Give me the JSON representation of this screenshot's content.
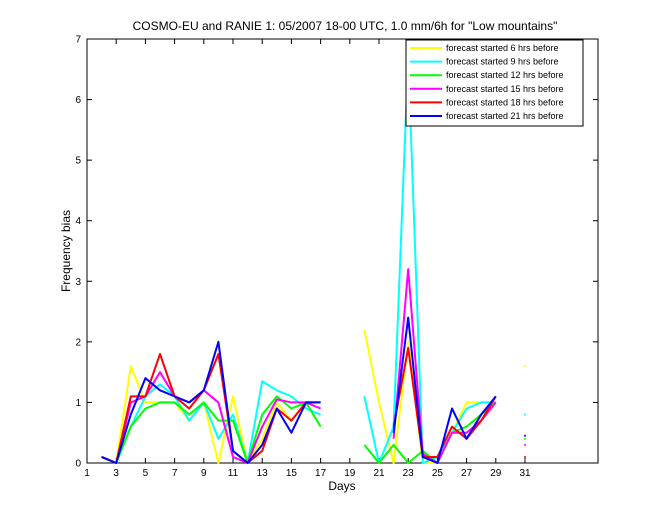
{
  "chart_data": {
    "type": "line",
    "title": "COSMO-EU and RANIE 1: 05/2007 18-00 UTC, 1.0 mm/6h for \"Low mountains\"",
    "xlabel": "Days",
    "ylabel": "Frequency bias",
    "xlim": [
      1,
      36
    ],
    "ylim": [
      0,
      7
    ],
    "xticks": [
      1,
      3,
      5,
      7,
      9,
      11,
      13,
      15,
      17,
      19,
      21,
      23,
      25,
      27,
      29,
      31
    ],
    "xtick_labels": [
      "1",
      "3",
      "5",
      "7",
      "9",
      "11",
      "13",
      "15",
      "17",
      "19",
      "21",
      "23",
      "25",
      "27",
      "29",
      "31"
    ],
    "yticks": [
      0,
      1,
      2,
      3,
      4,
      5,
      6,
      7
    ],
    "ytick_labels": [
      "0",
      "1",
      "2",
      "3",
      "4",
      "5",
      "6",
      "7"
    ],
    "grid": false,
    "legend_position": "top-right",
    "series": [
      {
        "name": "forecast started 6 hrs before",
        "color": "#ffff00",
        "values": [
          null,
          0.1,
          0.0,
          1.6,
          1.0,
          1.0,
          1.0,
          0.7,
          1.0,
          0.0,
          1.1,
          0.0,
          0.4,
          1.0,
          0.7,
          1.0,
          1.0,
          null,
          null,
          2.2,
          1.0,
          0.0,
          2.0,
          0.0,
          0.0,
          0.5,
          1.0,
          1.0,
          1.0,
          null,
          1.6
        ]
      },
      {
        "name": "forecast started 9 hrs before",
        "color": "#00ffff",
        "values": [
          null,
          0.1,
          0.0,
          0.6,
          1.1,
          1.3,
          1.1,
          0.7,
          1.0,
          0.4,
          0.8,
          0.0,
          1.35,
          1.2,
          1.1,
          0.9,
          0.8,
          null,
          null,
          1.1,
          0.0,
          0.6,
          6.7,
          0.0,
          0.1,
          0.5,
          0.9,
          1.0,
          1.0,
          null,
          0.8
        ]
      },
      {
        "name": "forecast started 12 hrs before",
        "color": "#00ff00",
        "values": [
          null,
          0.1,
          0.0,
          0.6,
          0.9,
          1.0,
          1.0,
          0.8,
          1.0,
          0.7,
          0.7,
          0.0,
          0.8,
          1.1,
          0.9,
          1.0,
          0.6,
          null,
          null,
          0.3,
          0.0,
          0.3,
          0.0,
          0.2,
          0.0,
          0.5,
          0.6,
          0.8,
          1.0,
          null,
          0.4
        ]
      },
      {
        "name": "forecast started 15 hrs before",
        "color": "#ff00ff",
        "values": [
          null,
          0.1,
          0.0,
          1.0,
          1.1,
          1.5,
          1.1,
          1.0,
          1.2,
          1.0,
          0.1,
          0.0,
          0.6,
          1.05,
          1.0,
          1.0,
          0.9,
          null,
          null,
          null,
          null,
          0.4,
          3.2,
          0.15,
          0.0,
          0.5,
          0.5,
          0.7,
          1.0,
          null,
          0.3
        ]
      },
      {
        "name": "forecast started 18 hrs before",
        "color": "#ff0000",
        "values": [
          null,
          0.1,
          0.0,
          1.1,
          1.1,
          1.8,
          1.1,
          0.9,
          1.2,
          1.8,
          0.2,
          0.0,
          0.2,
          0.9,
          0.7,
          1.0,
          1.0,
          null,
          null,
          null,
          null,
          0.6,
          1.9,
          0.1,
          0.1,
          0.6,
          0.4,
          0.7,
          1.1,
          null,
          0.1
        ]
      },
      {
        "name": "forecast started 21 hrs before",
        "color": "#0000ff",
        "values": [
          null,
          0.1,
          0.0,
          0.8,
          1.4,
          1.2,
          1.1,
          1.0,
          1.2,
          2.0,
          0.2,
          0.0,
          0.3,
          0.9,
          0.5,
          1.0,
          1.0,
          null,
          null,
          null,
          null,
          0.5,
          2.4,
          0.1,
          0.0,
          0.9,
          0.4,
          0.8,
          1.1,
          null,
          0.45
        ]
      }
    ]
  }
}
